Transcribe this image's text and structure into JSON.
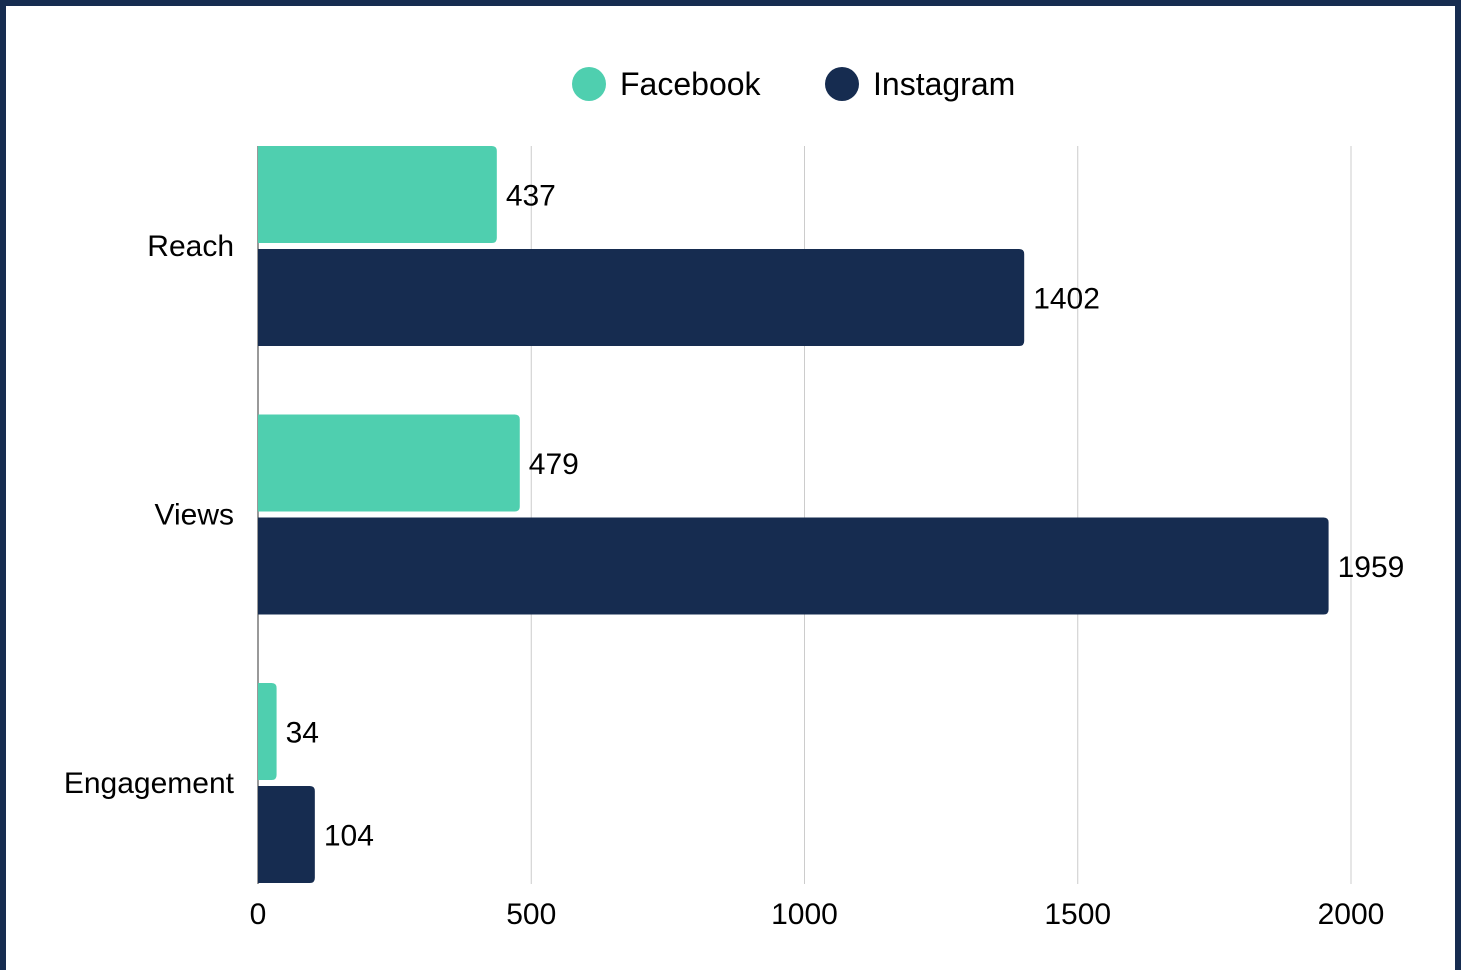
{
  "chart_data": {
    "type": "bar",
    "orientation": "horizontal",
    "categories": [
      "Reach",
      "Views",
      "Engagement"
    ],
    "series": [
      {
        "name": "Facebook",
        "color": "#4fcfaf",
        "values": [
          437,
          479,
          34
        ]
      },
      {
        "name": "Instagram",
        "color": "#162c50",
        "values": [
          1402,
          1959,
          104
        ]
      }
    ],
    "xlim": [
      0,
      2000
    ],
    "xticks": [
      0,
      500,
      1000,
      1500,
      2000
    ],
    "grid": true,
    "legend": "top-center",
    "title": "",
    "xlabel": "",
    "ylabel": ""
  },
  "colors": {
    "border": "#162c50",
    "background": "#ffffff",
    "grid": "#cccccc"
  }
}
